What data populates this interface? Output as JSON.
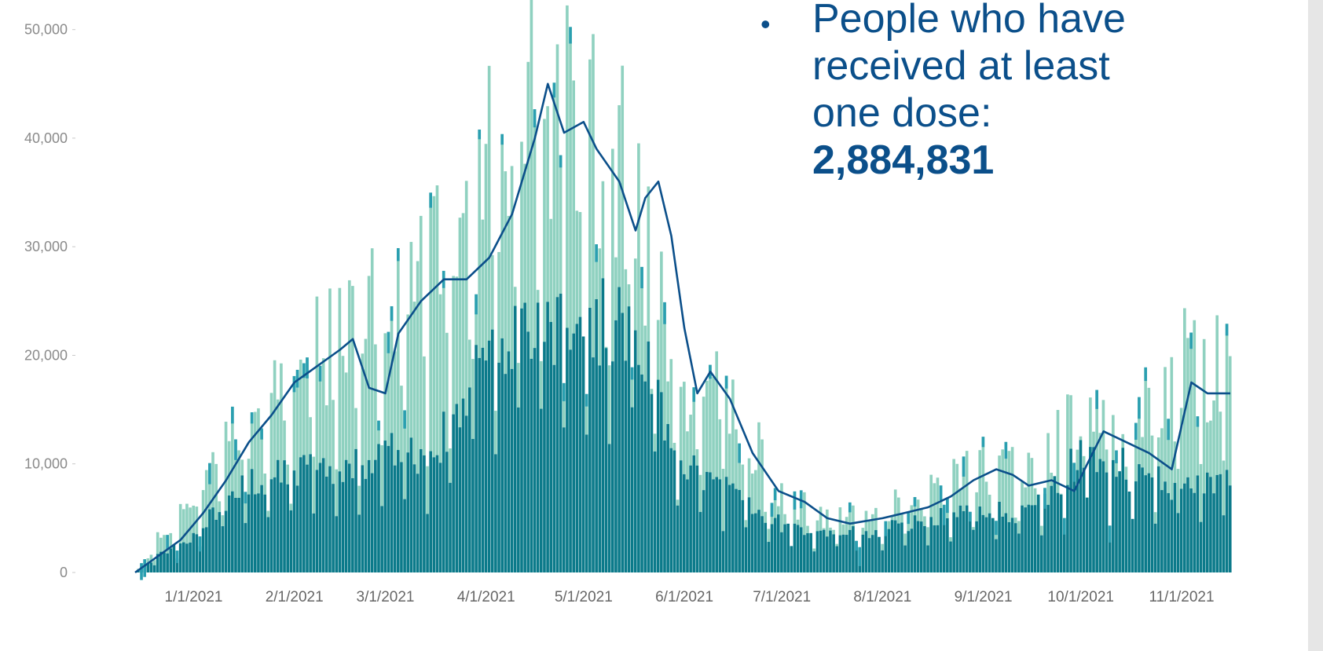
{
  "annotation": {
    "bullet": "•",
    "text": "People who have received at least one dose:",
    "value": "2,884,831"
  },
  "chart_data": {
    "type": "bar",
    "subtype": "stacked bar with moving-average line",
    "title": "",
    "xlabel": "",
    "ylabel": "",
    "ylim": [
      0,
      52000
    ],
    "yticks": [
      0,
      10000,
      20000,
      30000,
      40000,
      50000
    ],
    "ytick_labels": [
      "0",
      "10,000",
      "20,000",
      "30,000",
      "40,000",
      "50,000"
    ],
    "xticks": [
      "2021-01-01",
      "2021-02-01",
      "2021-03-01",
      "2021-04-01",
      "2021-05-01",
      "2021-06-01",
      "2021-07-01",
      "2021-08-01",
      "2021-09-01",
      "2021-10-01",
      "2021-11-01"
    ],
    "xtick_labels": [
      "1/1/2021",
      "2/1/2021",
      "3/1/2021",
      "4/1/2021",
      "5/1/2021",
      "6/1/2021",
      "7/1/2021",
      "8/1/2021",
      "9/1/2021",
      "10/1/2021",
      "11/1/2021"
    ],
    "x_start": "2020-12-14",
    "x_end": "2021-11-16",
    "grid": false,
    "legend": "none",
    "colors": {
      "dark_segment": "#0b7a8a",
      "light_segment": "#8fd1c0",
      "top_cap": "#2a9fb0",
      "line": "#0b4f8a",
      "tick_text": "#8a8a8a"
    },
    "series": [
      {
        "role": "dark_segment_monthly_level",
        "points": [
          [
            "2020-12-14",
            0
          ],
          [
            "2020-12-21",
            1500
          ],
          [
            "2021-01-01",
            3500
          ],
          [
            "2021-01-15",
            8500
          ],
          [
            "2021-02-01",
            9500
          ],
          [
            "2021-02-15",
            9500
          ],
          [
            "2021-03-01",
            11500
          ],
          [
            "2021-03-15",
            10500
          ],
          [
            "2021-04-01",
            21000
          ],
          [
            "2021-04-15",
            23500
          ],
          [
            "2021-05-01",
            24000
          ],
          [
            "2021-05-15",
            23000
          ],
          [
            "2021-06-01",
            10500
          ],
          [
            "2021-06-15",
            7500
          ],
          [
            "2021-07-01",
            4500
          ],
          [
            "2021-07-15",
            3500
          ],
          [
            "2021-08-01",
            4000
          ],
          [
            "2021-08-15",
            5000
          ],
          [
            "2021-09-01",
            6000
          ],
          [
            "2021-09-15",
            5500
          ],
          [
            "2021-10-01",
            11000
          ],
          [
            "2021-10-15",
            10000
          ],
          [
            "2021-11-01",
            8000
          ],
          [
            "2021-11-16",
            9000
          ]
        ]
      },
      {
        "role": "total_bar_envelope",
        "points": [
          [
            "2020-12-14",
            0
          ],
          [
            "2020-12-21",
            3000
          ],
          [
            "2021-01-01",
            6500
          ],
          [
            "2021-01-15",
            13000
          ],
          [
            "2021-02-01",
            19500
          ],
          [
            "2021-02-15",
            21000
          ],
          [
            "2021-03-01",
            26000
          ],
          [
            "2021-03-15",
            28500
          ],
          [
            "2021-04-01",
            37000
          ],
          [
            "2021-04-15",
            45000
          ],
          [
            "2021-05-01",
            43000
          ],
          [
            "2021-05-15",
            38000
          ],
          [
            "2021-06-01",
            16000
          ],
          [
            "2021-06-15",
            17000
          ],
          [
            "2021-07-01",
            7000
          ],
          [
            "2021-07-15",
            5000
          ],
          [
            "2021-08-01",
            5500
          ],
          [
            "2021-08-15",
            7500
          ],
          [
            "2021-09-01",
            10000
          ],
          [
            "2021-09-15",
            9000
          ],
          [
            "2021-10-01",
            14500
          ],
          [
            "2021-10-15",
            12500
          ],
          [
            "2021-11-01",
            19500
          ],
          [
            "2021-11-16",
            18500
          ]
        ]
      },
      {
        "role": "moving_average_line",
        "points": [
          [
            "2020-12-14",
            0
          ],
          [
            "2020-12-21",
            1500
          ],
          [
            "2020-12-28",
            3000
          ],
          [
            "2021-01-04",
            5500
          ],
          [
            "2021-01-11",
            8500
          ],
          [
            "2021-01-18",
            12000
          ],
          [
            "2021-01-25",
            14500
          ],
          [
            "2021-02-01",
            17500
          ],
          [
            "2021-02-08",
            19000
          ],
          [
            "2021-02-15",
            20500
          ],
          [
            "2021-02-19",
            21500
          ],
          [
            "2021-02-24",
            17000
          ],
          [
            "2021-03-01",
            16500
          ],
          [
            "2021-03-05",
            22000
          ],
          [
            "2021-03-12",
            25000
          ],
          [
            "2021-03-19",
            27000
          ],
          [
            "2021-03-26",
            27000
          ],
          [
            "2021-04-02",
            29000
          ],
          [
            "2021-04-09",
            33000
          ],
          [
            "2021-04-16",
            40000
          ],
          [
            "2021-04-20",
            45000
          ],
          [
            "2021-04-25",
            40500
          ],
          [
            "2021-05-01",
            41500
          ],
          [
            "2021-05-05",
            39000
          ],
          [
            "2021-05-12",
            36000
          ],
          [
            "2021-05-17",
            31500
          ],
          [
            "2021-05-20",
            34500
          ],
          [
            "2021-05-24",
            36000
          ],
          [
            "2021-05-28",
            31000
          ],
          [
            "2021-06-01",
            22500
          ],
          [
            "2021-06-05",
            16500
          ],
          [
            "2021-06-09",
            18500
          ],
          [
            "2021-06-15",
            16000
          ],
          [
            "2021-06-22",
            11000
          ],
          [
            "2021-06-30",
            7500
          ],
          [
            "2021-07-08",
            6500
          ],
          [
            "2021-07-15",
            5000
          ],
          [
            "2021-07-22",
            4500
          ],
          [
            "2021-08-01",
            5000
          ],
          [
            "2021-08-08",
            5500
          ],
          [
            "2021-08-15",
            6000
          ],
          [
            "2021-08-22",
            7000
          ],
          [
            "2021-08-29",
            8500
          ],
          [
            "2021-09-05",
            9500
          ],
          [
            "2021-09-10",
            9000
          ],
          [
            "2021-09-15",
            8000
          ],
          [
            "2021-09-22",
            8500
          ],
          [
            "2021-09-29",
            7500
          ],
          [
            "2021-10-03",
            10000
          ],
          [
            "2021-10-08",
            13000
          ],
          [
            "2021-10-15",
            12000
          ],
          [
            "2021-10-22",
            11000
          ],
          [
            "2021-10-29",
            9500
          ],
          [
            "2021-11-04",
            17500
          ],
          [
            "2021-11-09",
            16500
          ],
          [
            "2021-11-16",
            16500
          ]
        ]
      }
    ]
  }
}
